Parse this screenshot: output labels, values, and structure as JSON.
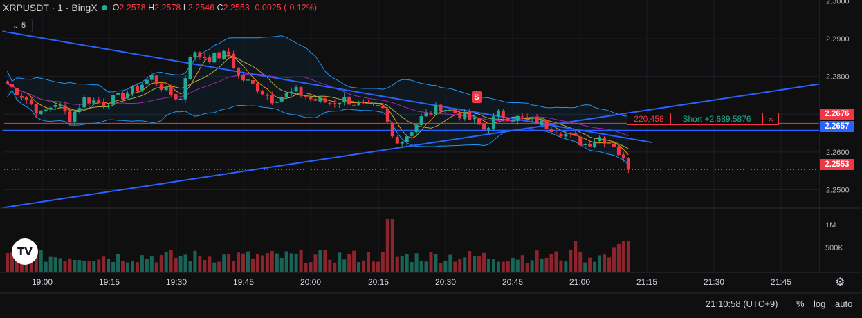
{
  "header": {
    "symbol": "XRPUSDT · 1 · BingX",
    "open_k": "O",
    "open": "2.2578",
    "high_k": "H",
    "high": "2.2578",
    "low_k": "L",
    "low": "2.2546",
    "close_k": "C",
    "close": "2.2553",
    "change": "-0.0025 (-0.12%)"
  },
  "indicator_collapse": {
    "label": "5",
    "icon": "chevron-down-icon"
  },
  "price_boxes": {
    "last_line": "2.2676",
    "position_line": "2.2657",
    "current": "2.2553"
  },
  "position": {
    "qty": "220,458",
    "pl": "Short +2,689.5876",
    "close": "×"
  },
  "signal_marker": "S",
  "logo": "TV",
  "footer": {
    "time": "21:10:58 (UTC+9)",
    "percent": "%",
    "log": "log",
    "auto": "auto"
  },
  "colors": {
    "up": "#22ab94",
    "down": "#f23645",
    "bb": "#2196f3",
    "trend": "#2962ff",
    "ma1": "#ff9800",
    "ma2": "#b2ad3a",
    "ma3": "#9c27b0"
  },
  "chart_data": {
    "type": "candlestick",
    "y_axis": {
      "range": [
        2.2453,
        2.3003
      ],
      "ticks": [
        "2.3000",
        "2.2900",
        "2.2800",
        "2.2700",
        "2.2600",
        "2.2500"
      ]
    },
    "volume_axis": {
      "ticks": [
        "1M",
        "500K"
      ]
    },
    "x_axis": {
      "ticks": [
        "19:00",
        "19:15",
        "19:30",
        "19:45",
        "20:00",
        "20:15",
        "20:30",
        "20:45",
        "21:00",
        "21:15",
        "21:30",
        "21:45"
      ]
    },
    "candles_count": 130,
    "anchors": [
      [
        0,
        2.278
      ],
      [
        4,
        2.274
      ],
      [
        7,
        2.27
      ],
      [
        10,
        2.273
      ],
      [
        13,
        2.269
      ],
      [
        16,
        2.274
      ],
      [
        20,
        2.273
      ],
      [
        24,
        2.275
      ],
      [
        27,
        2.277
      ],
      [
        30,
        2.28
      ],
      [
        33,
        2.276
      ],
      [
        36,
        2.274
      ],
      [
        38,
        2.286
      ],
      [
        42,
        2.285
      ],
      [
        46,
        2.286
      ],
      [
        48,
        2.28
      ],
      [
        52,
        2.277
      ],
      [
        55,
        2.274
      ],
      [
        60,
        2.276
      ],
      [
        63,
        2.274
      ],
      [
        67,
        2.273
      ],
      [
        70,
        2.274
      ],
      [
        74,
        2.272
      ],
      [
        78,
        2.271
      ],
      [
        80,
        2.264
      ],
      [
        82,
        2.263
      ],
      [
        86,
        2.269
      ],
      [
        90,
        2.272
      ],
      [
        94,
        2.27
      ],
      [
        97,
        2.268
      ],
      [
        99,
        2.266
      ],
      [
        102,
        2.27
      ],
      [
        106,
        2.269
      ],
      [
        110,
        2.268
      ],
      [
        114,
        2.266
      ],
      [
        117,
        2.264
      ],
      [
        120,
        2.262
      ],
      [
        123,
        2.264
      ],
      [
        126,
        2.262
      ],
      [
        129,
        2.2553
      ]
    ],
    "trendlines": [
      {
        "name": "",
        "from": [
          -1,
          2.292
        ],
        "to": [
          134,
          2.2625
        ]
      },
      {
        "name": "",
        "from": [
          -1,
          2.2452
        ],
        "to": [
          171,
          2.278
        ]
      },
      {
        "name": "",
        "from": [
          -1,
          2.2657
        ],
        "to": [
          171,
          2.2657
        ]
      }
    ],
    "horizontal_levels": [
      2.2676,
      2.2657,
      2.2553
    ]
  }
}
